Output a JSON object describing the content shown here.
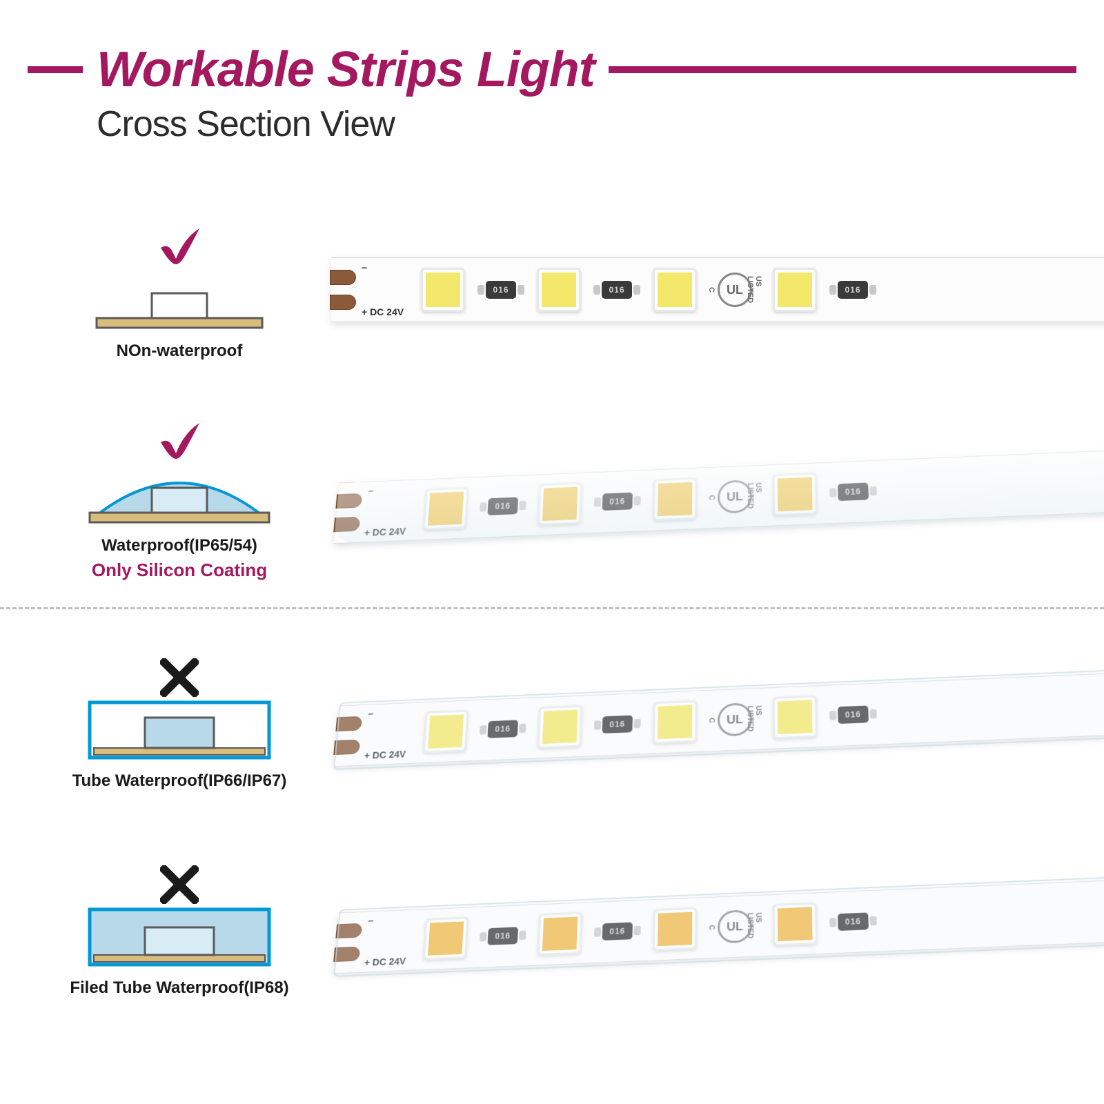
{
  "header": {
    "title": "Workable Strips Light",
    "subtitle": "Cross Section View",
    "accent_color": "#a3185f",
    "subtitle_color": "#2c2c2c"
  },
  "colors": {
    "accent": "#a3185f",
    "check": "#a3185f",
    "cross": "#1a1a1a",
    "base_fill": "#d9bd7c",
    "base_stroke": "#5a5a5a",
    "chip_fill": "#ffffff",
    "chip_stroke": "#5a5a5a",
    "coating_fill": "#b8d9ea",
    "coating_stroke": "#0099d6",
    "tube_fill": "#b8d9ea",
    "tube_stroke": "#0099d6",
    "divider": "#bfbfbf",
    "strip_bg": "#fcfcfc",
    "pad": "#8a5a3a",
    "resistor": "#3a3a3a"
  },
  "strip": {
    "voltage_minus": "−",
    "voltage_plus": "+ DC 24V",
    "resistor_text": "016",
    "ul_text": "UL",
    "ul_left": "C",
    "ul_right": "US",
    "ul_listed": "LISTED"
  },
  "led_colors": {
    "row1": "#f4e86b",
    "row2": "#f0c95a",
    "row3": "#f4e86b",
    "row4": "#f0b94a"
  },
  "rows": [
    {
      "id": "non-waterproof",
      "mark": "check",
      "label": "NOn-waterproof",
      "sublabel": "",
      "diagram_type": "bare",
      "strip_coating": "none",
      "perspective": false
    },
    {
      "id": "silicon-coating",
      "mark": "check",
      "label": "Waterproof(IP65/54)",
      "sublabel": "Only Silicon Coating",
      "diagram_type": "dome",
      "strip_coating": "dome",
      "perspective": true
    },
    {
      "id": "tube",
      "mark": "cross",
      "label": "Tube Waterproof(IP66/IP67)",
      "sublabel": "",
      "diagram_type": "tube",
      "strip_coating": "tube",
      "perspective": true
    },
    {
      "id": "filled-tube",
      "mark": "cross",
      "label": "Filed Tube Waterproof(IP68)",
      "sublabel": "",
      "diagram_type": "filled_tube",
      "strip_coating": "tube",
      "perspective": true
    }
  ]
}
